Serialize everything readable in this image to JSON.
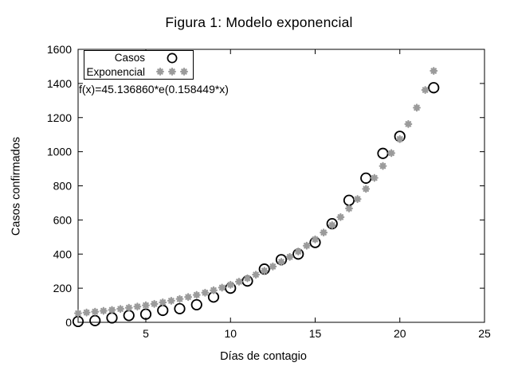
{
  "window": {
    "background": "#ffffff"
  },
  "chart_data": {
    "type": "scatter",
    "title": "Figura 1: Modelo exponencial",
    "xlabel": "Días de contagio",
    "ylabel": "Casos confirmados",
    "annotation": "f(x)=45.136860*e(0.158449*x)",
    "xlim": [
      1,
      25
    ],
    "ylim": [
      0,
      1600
    ],
    "xticks": [
      5,
      10,
      15,
      20,
      25
    ],
    "yticks": [
      0,
      200,
      400,
      600,
      800,
      1000,
      1200,
      1400,
      1600
    ],
    "grid": false,
    "legend_position": "top-left-inside",
    "series": [
      {
        "name": "Casos",
        "marker": "open-circle",
        "color": "#000000",
        "points": [
          [
            1,
            5
          ],
          [
            2,
            10
          ],
          [
            3,
            26
          ],
          [
            4,
            40
          ],
          [
            5,
            48
          ],
          [
            6,
            70
          ],
          [
            7,
            80
          ],
          [
            8,
            103
          ],
          [
            9,
            148
          ],
          [
            10,
            200
          ],
          [
            11,
            242
          ],
          [
            12,
            312
          ],
          [
            13,
            367
          ],
          [
            14,
            400
          ],
          [
            15,
            468
          ],
          [
            16,
            578
          ],
          [
            17,
            715
          ],
          [
            18,
            845
          ],
          [
            19,
            990
          ],
          [
            20,
            1090
          ],
          [
            22,
            1375
          ]
        ]
      },
      {
        "name": "Exponencial",
        "marker": "asterisk",
        "color": "#9b9b9b",
        "model": "f(x)=45.136860*e(0.158449*x)",
        "points": [
          [
            1,
            52.9
          ],
          [
            1.5,
            57.3
          ],
          [
            2,
            62.0
          ],
          [
            2.5,
            67.1
          ],
          [
            3,
            72.6
          ],
          [
            3.5,
            78.6
          ],
          [
            4,
            85.1
          ],
          [
            4.5,
            92.1
          ],
          [
            5,
            99.7
          ],
          [
            5.5,
            107.9
          ],
          [
            6,
            116.8
          ],
          [
            6.5,
            126.4
          ],
          [
            7,
            136.9
          ],
          [
            7.5,
            148.1
          ],
          [
            8,
            160.4
          ],
          [
            8.5,
            173.6
          ],
          [
            9,
            187.9
          ],
          [
            9.5,
            203.4
          ],
          [
            10,
            220.1
          ],
          [
            10.5,
            238.3
          ],
          [
            11,
            257.9
          ],
          [
            11.5,
            279.2
          ],
          [
            12,
            302.2
          ],
          [
            12.5,
            327.1
          ],
          [
            13,
            354.1
          ],
          [
            13.5,
            383.3
          ],
          [
            14,
            414.9
          ],
          [
            14.5,
            449.1
          ],
          [
            15,
            486.1
          ],
          [
            15.5,
            526.2
          ],
          [
            16,
            569.6
          ],
          [
            16.5,
            616.6
          ],
          [
            17,
            667.4
          ],
          [
            17.5,
            722.4
          ],
          [
            18,
            782.0
          ],
          [
            18.5,
            846.5
          ],
          [
            19,
            916.2
          ],
          [
            19.5,
            991.8
          ],
          [
            20,
            1073.6
          ],
          [
            20.5,
            1162.1
          ],
          [
            21,
            1257.9
          ],
          [
            21.5,
            1361.6
          ],
          [
            22,
            1473.8
          ]
        ]
      }
    ]
  },
  "legend": {
    "items": [
      {
        "label": "Casos"
      },
      {
        "label": "Exponencial"
      }
    ]
  },
  "colors": {
    "casos": "#000000",
    "exponencial": "#9b9b9b",
    "axis": "#000000",
    "background": "#ffffff"
  }
}
